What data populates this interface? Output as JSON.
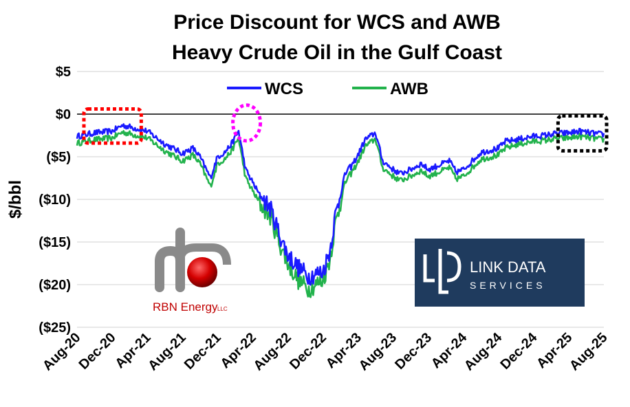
{
  "chart_data": {
    "type": "line",
    "title": "Price Discount for WCS and AWB",
    "subtitle": "Heavy Crude Oil in the Gulf Coast",
    "ylabel": "$/bbl",
    "xlabel": "",
    "ylim": [
      -25,
      5
    ],
    "y_ticks": [
      {
        "value": 5,
        "label": "$5"
      },
      {
        "value": 0,
        "label": "$0"
      },
      {
        "value": -5,
        "label": "($5)"
      },
      {
        "value": -10,
        "label": "($10)"
      },
      {
        "value": -15,
        "label": "($15)"
      },
      {
        "value": -20,
        "label": "($20)"
      },
      {
        "value": -25,
        "label": "($25)"
      }
    ],
    "x_ticks": [
      "Aug-20",
      "Dec-20",
      "Apr-21",
      "Aug-21",
      "Dec-21",
      "Apr-22",
      "Aug-22",
      "Dec-22",
      "Apr-23",
      "Aug-23",
      "Dec-23",
      "Apr-24",
      "Aug-24",
      "Dec-24",
      "Apr-25",
      "Aug-25"
    ],
    "grid": true,
    "legend_position": "top",
    "x_keypoints": [
      0,
      0.25,
      0.5,
      1,
      1.3,
      2,
      2.5,
      3,
      3.3,
      3.5,
      3.8,
      4,
      4.2,
      4.4,
      4.6,
      4.8,
      5,
      5.2,
      5.5,
      5.8,
      6,
      6.3,
      6.6,
      7,
      7.2,
      7.35,
      7.5,
      7.6,
      7.7,
      7.8,
      7.9,
      8,
      8.2,
      8.5,
      8.7,
      9,
      9.2,
      9.5,
      9.8,
      10,
      10.3,
      10.6,
      10.8,
      11,
      11.5,
      12,
      12.2,
      12.5,
      13,
      13.3,
      13.6,
      14,
      14.3,
      14.6,
      15
    ],
    "series": [
      {
        "name": "WCS",
        "color": "#1a1aff",
        "values": [
          -2.6,
          -2.4,
          -2.2,
          -2.0,
          -1.3,
          -2.0,
          -3.5,
          -4.6,
          -4.0,
          -5.0,
          -7.5,
          -5.0,
          -4.5,
          -3.5,
          -2.0,
          -6.5,
          -8.0,
          -9.5,
          -11.0,
          -14.5,
          -16.5,
          -18.0,
          -19.0,
          -18.5,
          -16.0,
          -12.0,
          -9.5,
          -7.5,
          -6.5,
          -6.2,
          -5.5,
          -4.8,
          -3.0,
          -2.2,
          -5.5,
          -6.5,
          -7.0,
          -6.5,
          -5.8,
          -6.5,
          -6.0,
          -5.5,
          -6.8,
          -6.5,
          -4.5,
          -4.0,
          -3.2,
          -3.0,
          -2.6,
          -2.5,
          -2.3,
          -2.2,
          -2.0,
          -2.2,
          -2.4
        ]
      },
      {
        "name": "AWB",
        "color": "#22b24c",
        "values": [
          -3.4,
          -3.2,
          -3.0,
          -2.8,
          -2.1,
          -2.8,
          -4.3,
          -5.5,
          -4.8,
          -5.8,
          -8.5,
          -5.8,
          -5.3,
          -4.3,
          -2.8,
          -7.5,
          -9.0,
          -10.5,
          -12.0,
          -15.5,
          -17.5,
          -19.5,
          -20.5,
          -19.5,
          -17.0,
          -13.0,
          -10.5,
          -8.5,
          -7.5,
          -7.0,
          -6.3,
          -5.6,
          -3.8,
          -2.9,
          -6.3,
          -7.3,
          -7.8,
          -7.3,
          -6.6,
          -7.3,
          -6.8,
          -6.3,
          -7.6,
          -7.3,
          -5.3,
          -4.8,
          -4.0,
          -3.6,
          -3.2,
          -3.1,
          -2.9,
          -2.8,
          -2.6,
          -2.8,
          -3.0
        ]
      }
    ],
    "annotations": [
      {
        "shape": "dotted-rectangle",
        "color": "#ff0000",
        "x_range": [
          "Aug-20",
          "Mar-21"
        ],
        "y_range": [
          -3.4,
          0.6
        ]
      },
      {
        "shape": "dotted-ellipse",
        "color": "#ff00ff",
        "x": "Mar-22",
        "y": -1.2
      },
      {
        "shape": "dotted-rectangle",
        "color": "#000000",
        "x_range": [
          "Feb-25",
          "Aug-25"
        ],
        "y_range": [
          -4.3,
          -0.2
        ]
      }
    ]
  },
  "logos": {
    "rbn": {
      "word": "RBN Energy",
      "suffix": "LLC"
    },
    "link": {
      "line1": "LINK DATA",
      "line2": "SERVICES"
    }
  }
}
